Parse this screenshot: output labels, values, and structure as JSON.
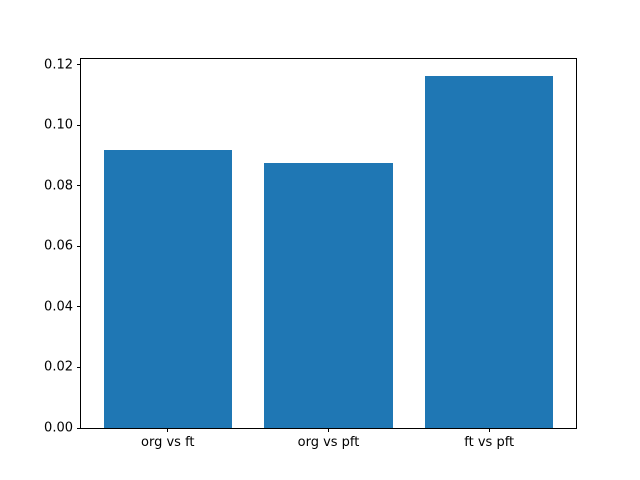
{
  "figure": {
    "background_color": "#ffffff",
    "spine_color": "#000000",
    "text_color": "#000000"
  },
  "chart_data": {
    "type": "bar",
    "title": "",
    "xlabel": "",
    "ylabel": "",
    "categories": [
      "org vs ft",
      "org vs pft",
      "ft vs pft"
    ],
    "values": [
      0.0918,
      0.0876,
      0.1162
    ],
    "bar_color": "#1f77b4",
    "bar_width": 0.8,
    "xlim": [
      -0.54,
      2.54
    ],
    "ylim": [
      0,
      0.1219
    ],
    "yticks": [
      0.0,
      0.02,
      0.04,
      0.06,
      0.08,
      0.1,
      0.12
    ],
    "ytick_labels": [
      "0.00",
      "0.02",
      "0.04",
      "0.06",
      "0.08",
      "0.10",
      "0.12"
    ],
    "grid": false,
    "legend": null
  }
}
